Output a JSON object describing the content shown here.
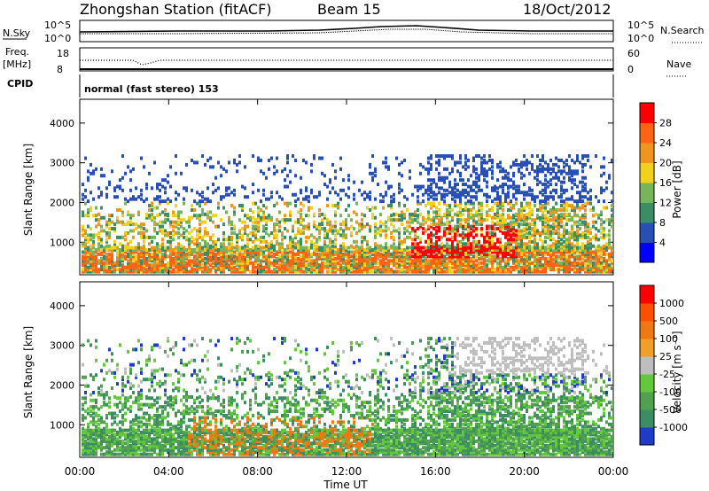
{
  "header": {
    "title": "Zhongshan Station (fitACF)",
    "beam": "Beam 15",
    "date": "18/Oct/2012"
  },
  "strip_labels": {
    "nsky": "N.Sky",
    "nsearch": "N.Search",
    "freq": "Freq.",
    "freq_unit": "[MHz]",
    "nave": "Nave",
    "cpid": "CPID",
    "cpid_text": "normal (fast stereo) 153"
  },
  "strip_ticks": {
    "noise_left": [
      "10^5",
      "10^0"
    ],
    "noise_right": [
      "10^5",
      "10^0"
    ],
    "freq_left": [
      "18",
      "8"
    ],
    "nave_right": [
      "60",
      "0"
    ]
  },
  "chart_data": [
    {
      "type": "heatmap",
      "panel": "power",
      "ylabel": "Slant Range [km]",
      "yticks": [
        1000,
        2000,
        3000,
        4000
      ],
      "ylim": [
        180,
        4600
      ],
      "xlim": [
        0,
        24
      ],
      "colorbar_label": "Power [dB]",
      "colorbar_ticks": [
        4,
        8,
        12,
        16,
        20,
        24,
        28
      ],
      "colorbar_colors": [
        "#0000ff",
        "#2850b4",
        "#3c8c64",
        "#78b45a",
        "#f0d21e",
        "#f0961e",
        "#ff6414",
        "#ff0000"
      ]
    },
    {
      "type": "heatmap",
      "panel": "velocity",
      "ylabel": "Slant Range [km]",
      "yticks": [
        1000,
        2000,
        3000,
        4000
      ],
      "ylim": [
        180,
        4600
      ],
      "xlim": [
        0,
        24
      ],
      "xlabel": "Time UT",
      "xticks": [
        "00:00",
        "04:00",
        "08:00",
        "12:00",
        "16:00",
        "20:00",
        "00:00"
      ],
      "colorbar_label": "Velocity [m s⁻¹]",
      "colorbar_ticks": [
        1000,
        500,
        100,
        25,
        -25,
        -100,
        -500,
        -1000
      ],
      "colorbar_colors": [
        "#1e3cc8",
        "#3c8c64",
        "#50a050",
        "#64c83c",
        "#bebebe",
        "#f0a028",
        "#f07814",
        "#ff5000",
        "#ff0000"
      ]
    }
  ]
}
